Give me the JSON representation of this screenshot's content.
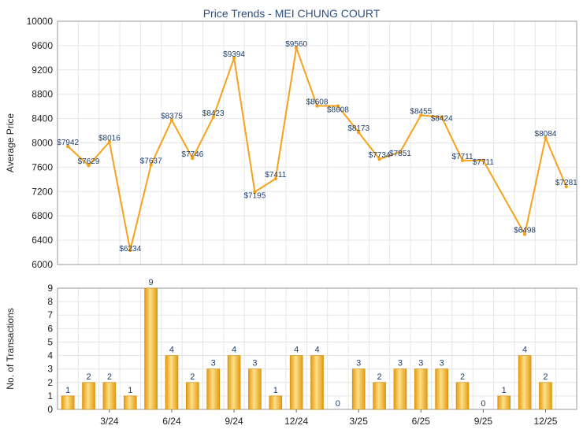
{
  "title": "Price Trends - MEI CHUNG COURT",
  "colors": {
    "line": "#f7a21b",
    "bar_dark": "#e39a10",
    "bar_light": "#fde08a",
    "grid": "#e6e6e6",
    "axis": "#444444",
    "title": "#2f4f7f",
    "label": "#1f3f6f"
  },
  "chart_data": [
    {
      "type": "line",
      "ylabel": "Average Price",
      "ylim": [
        6000,
        10000
      ],
      "yticks": [
        6000,
        6400,
        6800,
        7200,
        7600,
        8000,
        8400,
        8800,
        9200,
        9600,
        10000
      ],
      "grid": true,
      "series": [
        {
          "values": [
            7942,
            7629,
            8016,
            6234,
            7637,
            8375,
            7746,
            8423,
            9394,
            7195,
            7411,
            9560,
            8608,
            8608,
            8173,
            7734,
            7851,
            8455,
            8424,
            7711,
            7711,
            6498,
            8084,
            7281
          ],
          "labels": [
            "$7942",
            "$7629",
            "$8016",
            "$6234",
            "$7637",
            "$8375",
            "$7746",
            "$8423",
            "$9394",
            "$7195",
            "$7411",
            "$9560",
            "$8608",
            "$8608",
            "$8173",
            "$7734",
            "$7851",
            "$8455",
            "$8424",
            "$7711",
            "$7711",
            "$6498",
            "$8084",
            "$7281"
          ],
          "index": [
            0,
            1,
            2,
            3,
            4,
            5,
            6,
            7,
            8,
            9,
            10,
            11,
            12,
            13,
            14,
            15,
            16,
            17,
            18,
            19,
            20,
            22,
            23,
            24
          ]
        }
      ]
    },
    {
      "type": "bar",
      "ylabel": "No. of Transactions",
      "ylim": [
        0,
        9
      ],
      "yticks": [
        0,
        1,
        2,
        3,
        4,
        5,
        6,
        7,
        8,
        9
      ],
      "grid": true,
      "values": [
        1,
        2,
        2,
        1,
        9,
        4,
        2,
        3,
        4,
        3,
        1,
        4,
        4,
        0,
        3,
        2,
        3,
        3,
        3,
        2,
        0,
        1,
        4,
        2
      ],
      "xtick_labels": [
        "3/24",
        "6/24",
        "9/24",
        "12/24",
        "3/25",
        "6/25",
        "9/25",
        "12/25"
      ]
    }
  ]
}
